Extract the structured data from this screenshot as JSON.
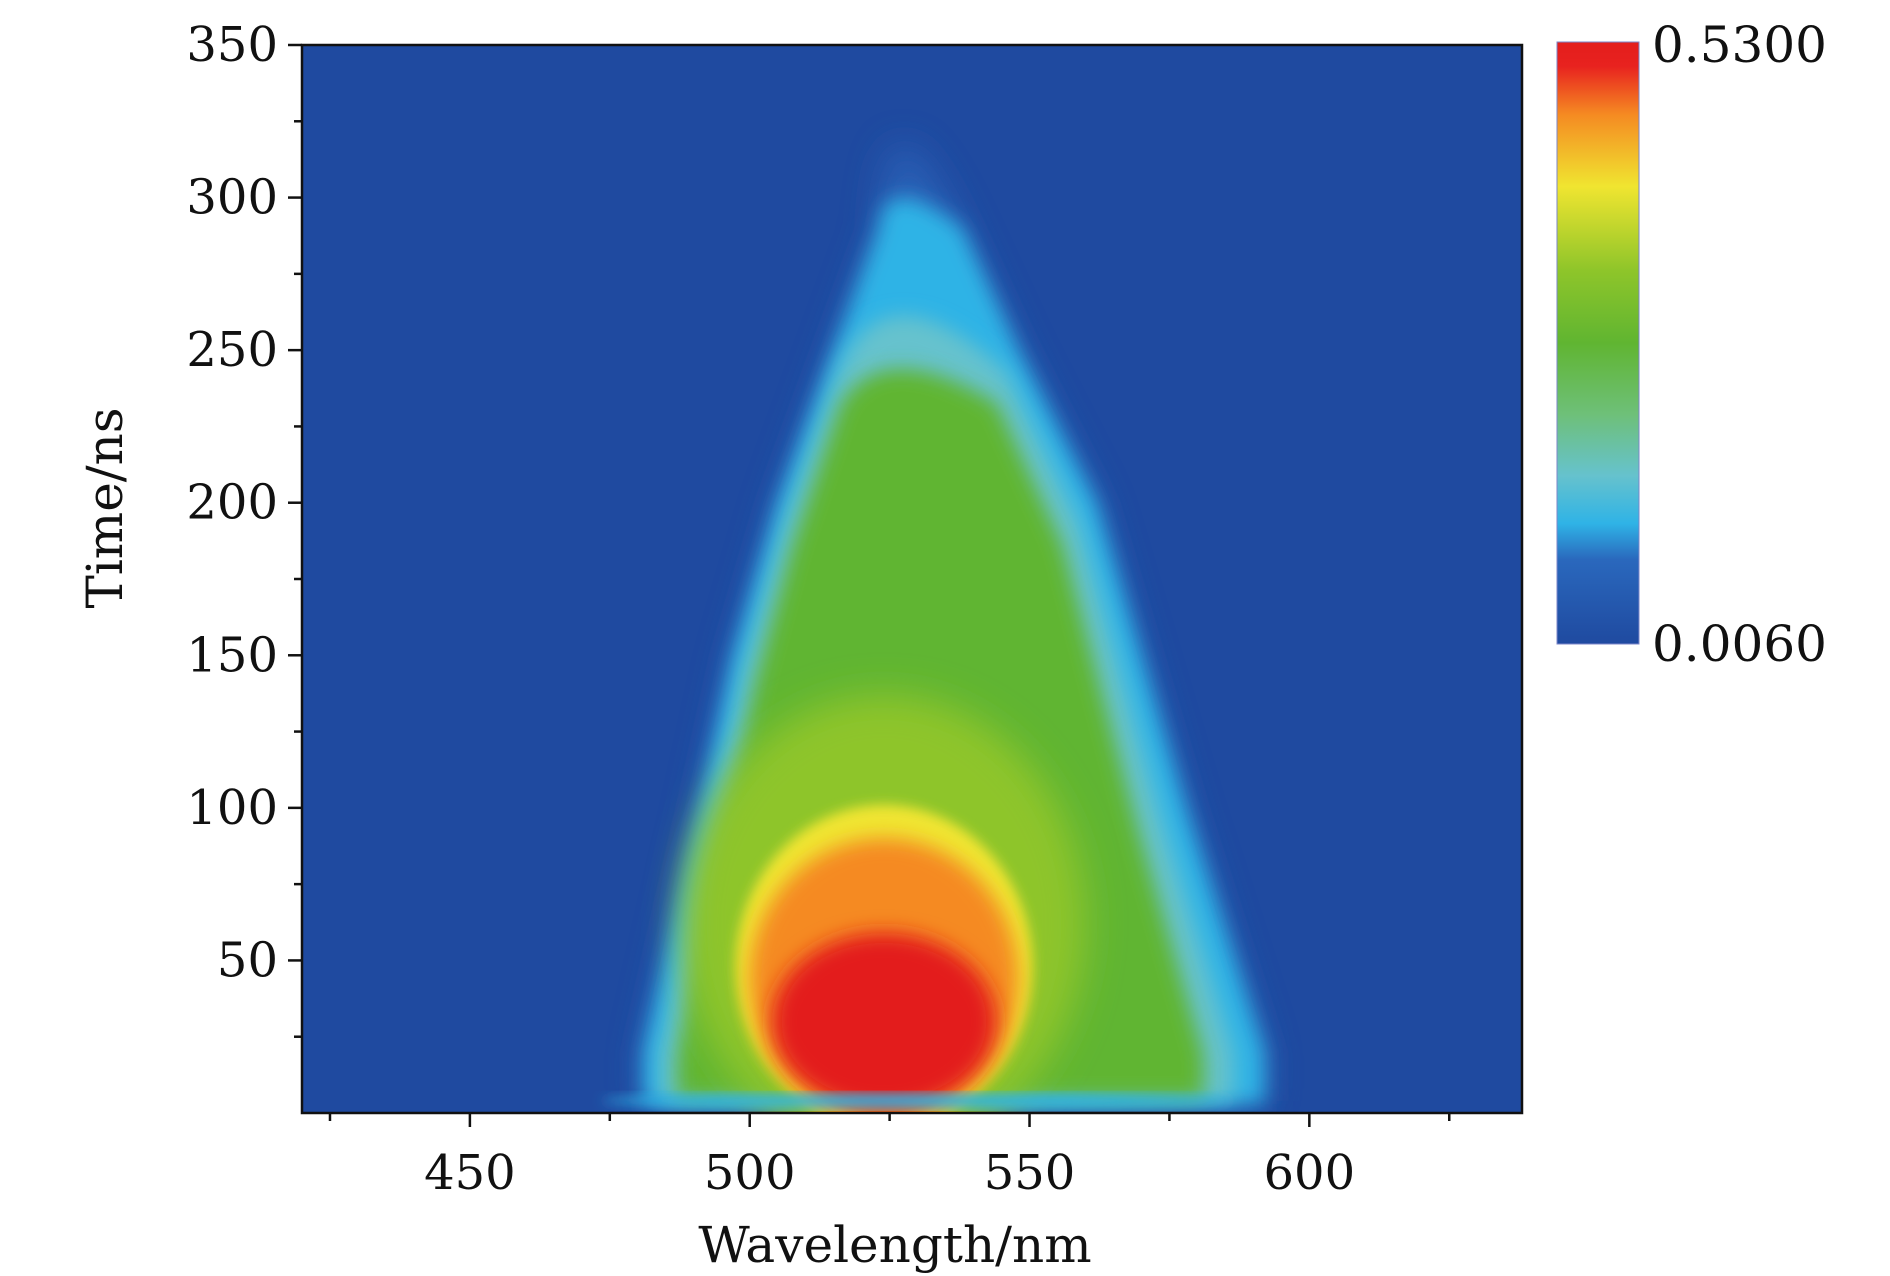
{
  "chart_data": {
    "type": "heatmap",
    "title": "",
    "xlabel": "Wavelength/nm",
    "ylabel": "Time/ns",
    "xlim": [
      420,
      638
    ],
    "ylim": [
      0,
      350
    ],
    "x_ticks": [
      450,
      500,
      550,
      600
    ],
    "x_tick_labels": [
      "450",
      "500",
      "550",
      "600"
    ],
    "x_minor_ticks": [
      425,
      475,
      525,
      575,
      625
    ],
    "y_ticks": [
      50,
      100,
      150,
      200,
      250,
      300,
      350
    ],
    "y_tick_labels": [
      "50",
      "100",
      "150",
      "200",
      "250",
      "300",
      "350"
    ],
    "y_minor_ticks": [
      25,
      75,
      125,
      175,
      225,
      275,
      325
    ],
    "colorbar": {
      "min": 0.006,
      "max": 0.53,
      "min_label": "0.0060",
      "max_label": "0.5300",
      "colors": [
        "#1f4aa0",
        "#2a68bd",
        "#2fb3e6",
        "#66c2cd",
        "#6ec07a",
        "#60b531",
        "#8ec52a",
        "#f0e530",
        "#f58a22",
        "#e8221f",
        "#e31d1c"
      ]
    },
    "z_field": {
      "background": 0.006,
      "peak_value": 0.53,
      "peak_wavelength_nm": 524,
      "peak_time_ns": 30,
      "red_region_time_ns": [
        8,
        100
      ],
      "red_region_wavelength_nm": [
        508,
        556
      ],
      "emission_edges": [
        {
          "time_ns": 20,
          "left_nm": 481,
          "right_nm": 592
        },
        {
          "time_ns": 100,
          "left_nm": 491,
          "right_nm": 578
        },
        {
          "time_ns": 150,
          "left_nm": 497,
          "right_nm": 570
        },
        {
          "time_ns": 200,
          "left_nm": 505,
          "right_nm": 562
        },
        {
          "time_ns": 250,
          "left_nm": 515,
          "right_nm": 548
        },
        {
          "time_ns": 290,
          "left_nm": 523,
          "right_nm": 538
        }
      ]
    }
  }
}
